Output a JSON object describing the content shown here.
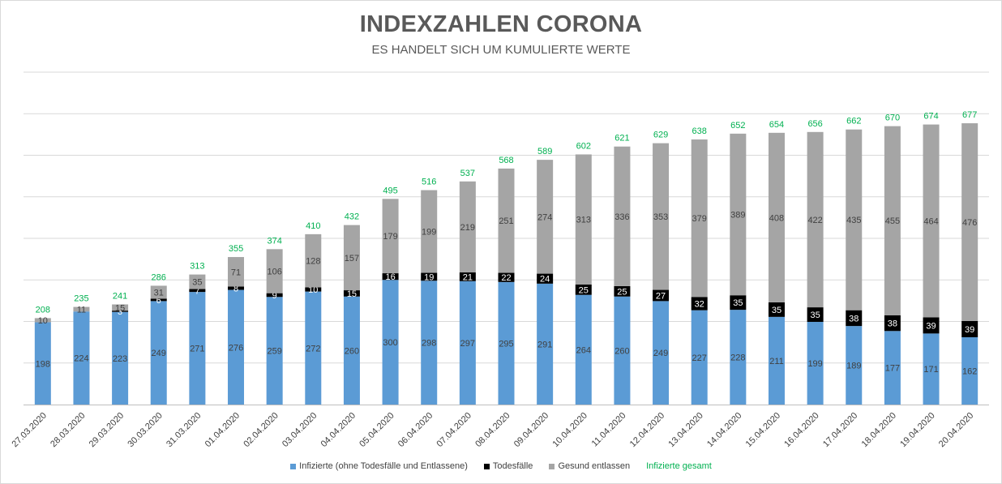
{
  "chart_data": {
    "type": "bar",
    "stacked": true,
    "title": "INDEXZAHLEN CORONA",
    "subtitle": "ES HANDELT SICH UM KUMULIERTE WERTE",
    "categories": [
      "27.03.2020",
      "28.03.2020",
      "29.03.2020",
      "30.03.2020",
      "31.03.2020",
      "01.04.2020",
      "02.04.2020",
      "03.04.2020",
      "04.04.2020",
      "05.04.2020",
      "06.04.2020",
      "07.04.2020",
      "08.04.2020",
      "09.04.2020",
      "10.04.2020",
      "11.04.2020",
      "12.04.2020",
      "13.04.2020",
      "14.04.2020",
      "15.04.2020",
      "16.04.2020",
      "17.04.2020",
      "18.04.2020",
      "19.04.2020",
      "20.04.2020"
    ],
    "series": [
      {
        "name": "Infizierte (ohne Todesfälle und Entlassene)",
        "color": "#5b9bd5",
        "values": [
          198,
          224,
          223,
          249,
          271,
          276,
          259,
          272,
          260,
          300,
          298,
          297,
          295,
          291,
          264,
          260,
          249,
          227,
          228,
          211,
          199,
          189,
          177,
          171,
          162
        ]
      },
      {
        "name": "Todesfälle",
        "color": "#000000",
        "values": [
          0,
          0,
          3,
          6,
          7,
          8,
          9,
          10,
          15,
          16,
          19,
          21,
          22,
          24,
          25,
          25,
          27,
          32,
          35,
          35,
          35,
          38,
          38,
          39,
          39
        ]
      },
      {
        "name": "Gesund entlassen",
        "color": "#a5a5a5",
        "values": [
          10,
          11,
          15,
          31,
          35,
          71,
          106,
          128,
          157,
          179,
          199,
          219,
          251,
          274,
          313,
          336,
          353,
          379,
          389,
          408,
          422,
          435,
          455,
          464,
          476
        ]
      }
    ],
    "totals": {
      "name": "Infizierte gesamt",
      "color": "#00b050",
      "values": [
        208,
        235,
        241,
        286,
        313,
        355,
        374,
        410,
        432,
        495,
        516,
        537,
        568,
        589,
        602,
        621,
        629,
        638,
        652,
        654,
        656,
        662,
        670,
        674,
        677
      ]
    },
    "ylim": [
      0,
      800
    ],
    "gridlines": true,
    "legend_position": "bottom"
  }
}
